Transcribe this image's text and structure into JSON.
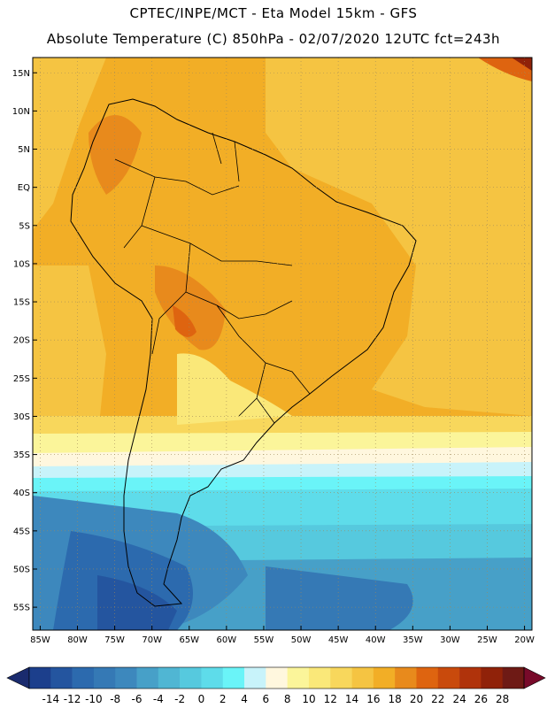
{
  "header": {
    "line1": "CPTEC/INPE/MCT -  Eta Model 15km - GFS",
    "line2": "Absolute Temperature (C) 850hPa - 02/07/2020 12UTC fct=243h"
  },
  "map": {
    "lon_range": [
      -86,
      -19
    ],
    "lat_range": [
      -58,
      17
    ],
    "lat_labels": [
      "15N",
      "10N",
      "5N",
      "EQ",
      "5S",
      "10S",
      "15S",
      "20S",
      "25S",
      "30S",
      "35S",
      "40S",
      "45S",
      "50S",
      "55S"
    ],
    "lat_values": [
      15,
      10,
      5,
      0,
      -5,
      -10,
      -15,
      -20,
      -25,
      -30,
      -35,
      -40,
      -45,
      -50,
      -55
    ],
    "lon_labels": [
      "85W",
      "80W",
      "75W",
      "70W",
      "65W",
      "60W",
      "55W",
      "50W",
      "45W",
      "40W",
      "35W",
      "30W",
      "25W",
      "20W"
    ],
    "lon_values": [
      -85,
      -80,
      -75,
      -70,
      -65,
      -60,
      -55,
      -50,
      -45,
      -40,
      -35,
      -30,
      -25,
      -20
    ],
    "grid": true
  },
  "colorbar": {
    "labels": [
      "-14",
      "-12",
      "-10",
      "-8",
      "-6",
      "-4",
      "-2",
      "0",
      "2",
      "4",
      "6",
      "8",
      "10",
      "12",
      "14",
      "16",
      "18",
      "20",
      "22",
      "24",
      "26",
      "28"
    ],
    "colors": [
      "#1c3f8c",
      "#24559f",
      "#2c6aae",
      "#3579b5",
      "#3d88bd",
      "#47a0c8",
      "#50b6d3",
      "#56c9de",
      "#5edcea",
      "#6af4f8",
      "#c8f3fa",
      "#fff7de",
      "#fbf59a",
      "#fae879",
      "#f8d75c",
      "#f5c442",
      "#f2ae26",
      "#e88a1c",
      "#de6410",
      "#c94a0c",
      "#b0330b",
      "#902209",
      "#6e1a15"
    ],
    "under_color": "#1a2b6e",
    "over_color": "#780a2a"
  }
}
